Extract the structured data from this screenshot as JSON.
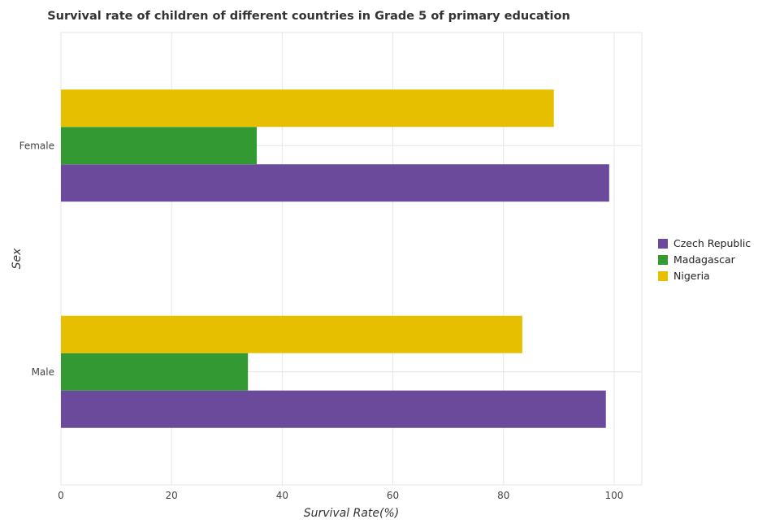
{
  "chart_data": {
    "type": "bar",
    "orientation": "horizontal",
    "title": "Survival rate of children of different countries in Grade 5 of primary education",
    "xlabel": "Survival Rate(%)",
    "ylabel": "Sex",
    "xlim": [
      0,
      105
    ],
    "xticks": [
      0,
      20,
      40,
      60,
      80,
      100
    ],
    "categories": [
      "Female",
      "Male"
    ],
    "series": [
      {
        "name": "Czech Republic",
        "color": "#6b4a9b",
        "values": [
          99.1,
          98.5
        ]
      },
      {
        "name": "Madagascar",
        "color": "#339933",
        "values": [
          35.4,
          33.8
        ]
      },
      {
        "name": "Nigeria",
        "color": "#e6c000",
        "values": [
          89.1,
          83.4
        ]
      }
    ],
    "grid": true,
    "legend_position": "right"
  }
}
